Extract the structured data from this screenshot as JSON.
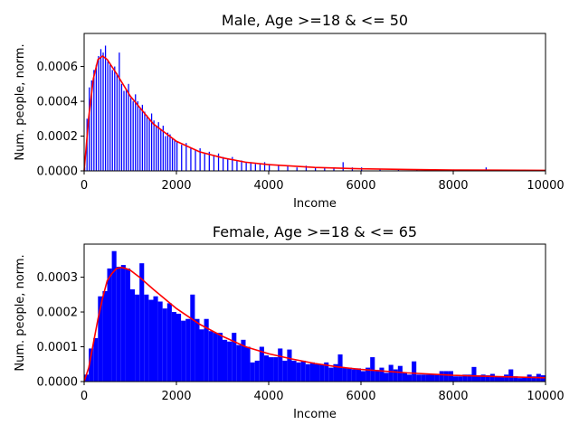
{
  "chart_data": [
    {
      "type": "bar",
      "title": "Male, Age >=18 & <= 50",
      "xlabel": "Income",
      "ylabel": "Num. people, norm.",
      "xlim": [
        0,
        10000
      ],
      "ylim": [
        0,
        0.00079
      ],
      "xticks": [
        0,
        2000,
        4000,
        6000,
        8000,
        10000
      ],
      "xtick_labels": [
        "0",
        "2000",
        "4000",
        "6000",
        "8000",
        "10000"
      ],
      "yticks": [
        0,
        0.0002,
        0.0004,
        0.0006
      ],
      "ytick_labels": [
        "0.0000",
        "0.0002",
        "0.0004",
        "0.0006"
      ],
      "grid": false,
      "histogram": {
        "color": "#0000ff",
        "bin_width": 25,
        "bins": [
          {
            "x": 0,
            "v": 2e-05
          },
          {
            "x": 50,
            "v": 0.0003
          },
          {
            "x": 100,
            "v": 0.00048
          },
          {
            "x": 150,
            "v": 0.00052
          },
          {
            "x": 200,
            "v": 0.00058
          },
          {
            "x": 250,
            "v": 0.00061
          },
          {
            "x": 300,
            "v": 0.00066
          },
          {
            "x": 350,
            "v": 0.0007
          },
          {
            "x": 400,
            "v": 0.00068
          },
          {
            "x": 450,
            "v": 0.00072
          },
          {
            "x": 500,
            "v": 0.00063
          },
          {
            "x": 550,
            "v": 0.00061
          },
          {
            "x": 600,
            "v": 0.00058
          },
          {
            "x": 650,
            "v": 0.0006
          },
          {
            "x": 700,
            "v": 0.00056
          },
          {
            "x": 750,
            "v": 0.00068
          },
          {
            "x": 800,
            "v": 0.0005
          },
          {
            "x": 850,
            "v": 0.00046
          },
          {
            "x": 900,
            "v": 0.00047
          },
          {
            "x": 950,
            "v": 0.0005
          },
          {
            "x": 1000,
            "v": 0.00042
          },
          {
            "x": 1050,
            "v": 0.0004
          },
          {
            "x": 1100,
            "v": 0.00044
          },
          {
            "x": 1150,
            "v": 0.0004
          },
          {
            "x": 1200,
            "v": 0.00036
          },
          {
            "x": 1250,
            "v": 0.00038
          },
          {
            "x": 1300,
            "v": 0.00034
          },
          {
            "x": 1350,
            "v": 0.00032
          },
          {
            "x": 1400,
            "v": 0.0003
          },
          {
            "x": 1450,
            "v": 0.00033
          },
          {
            "x": 1500,
            "v": 0.00029
          },
          {
            "x": 1550,
            "v": 0.00026
          },
          {
            "x": 1600,
            "v": 0.00028
          },
          {
            "x": 1650,
            "v": 0.00024
          },
          {
            "x": 1700,
            "v": 0.00026
          },
          {
            "x": 1750,
            "v": 0.0002
          },
          {
            "x": 1800,
            "v": 0.00022
          },
          {
            "x": 1850,
            "v": 0.00021
          },
          {
            "x": 1900,
            "v": 0.00019
          },
          {
            "x": 1950,
            "v": 0.00018
          },
          {
            "x": 2000,
            "v": 0.00017
          },
          {
            "x": 2100,
            "v": 0.00015
          },
          {
            "x": 2200,
            "v": 0.00016
          },
          {
            "x": 2300,
            "v": 0.00013
          },
          {
            "x": 2400,
            "v": 0.00012
          },
          {
            "x": 2500,
            "v": 0.00013
          },
          {
            "x": 2600,
            "v": 0.0001
          },
          {
            "x": 2700,
            "v": 0.00011
          },
          {
            "x": 2800,
            "v": 9e-05
          },
          {
            "x": 2900,
            "v": 0.0001
          },
          {
            "x": 3000,
            "v": 8e-05
          },
          {
            "x": 3100,
            "v": 7e-05
          },
          {
            "x": 3200,
            "v": 8e-05
          },
          {
            "x": 3300,
            "v": 6e-05
          },
          {
            "x": 3400,
            "v": 6e-05
          },
          {
            "x": 3500,
            "v": 5e-05
          },
          {
            "x": 3600,
            "v": 5e-05
          },
          {
            "x": 3700,
            "v": 4e-05
          },
          {
            "x": 3800,
            "v": 4e-05
          },
          {
            "x": 3900,
            "v": 5e-05
          },
          {
            "x": 4000,
            "v": 4e-05
          },
          {
            "x": 4200,
            "v": 3e-05
          },
          {
            "x": 4400,
            "v": 3e-05
          },
          {
            "x": 4600,
            "v": 2e-05
          },
          {
            "x": 4800,
            "v": 3e-05
          },
          {
            "x": 5000,
            "v": 2e-05
          },
          {
            "x": 5200,
            "v": 2e-05
          },
          {
            "x": 5400,
            "v": 2e-05
          },
          {
            "x": 5600,
            "v": 5e-05
          },
          {
            "x": 5800,
            "v": 2e-05
          },
          {
            "x": 6000,
            "v": 2e-05
          },
          {
            "x": 6400,
            "v": 1e-05
          },
          {
            "x": 6800,
            "v": 1e-05
          },
          {
            "x": 7200,
            "v": 1e-05
          },
          {
            "x": 7600,
            "v": 8e-06
          },
          {
            "x": 8000,
            "v": 8e-06
          },
          {
            "x": 8400,
            "v": 6e-06
          },
          {
            "x": 8700,
            "v": 2e-05
          },
          {
            "x": 9000,
            "v": 6e-06
          },
          {
            "x": 9500,
            "v": 5e-06
          }
        ]
      },
      "fit_curve": {
        "color": "#ff0000",
        "points": [
          [
            0,
            0
          ],
          [
            100,
            0.00031
          ],
          [
            200,
            0.00053
          ],
          [
            300,
            0.00064
          ],
          [
            400,
            0.00066
          ],
          [
            500,
            0.00064
          ],
          [
            700,
            0.00056
          ],
          [
            1000,
            0.00043
          ],
          [
            1500,
            0.00027
          ],
          [
            2000,
            0.00017
          ],
          [
            2500,
            0.00011
          ],
          [
            3000,
            7.5e-05
          ],
          [
            3500,
            5e-05
          ],
          [
            4000,
            3.6e-05
          ],
          [
            5000,
            2e-05
          ],
          [
            6000,
            1.2e-05
          ],
          [
            7000,
            8e-06
          ],
          [
            8000,
            5e-06
          ],
          [
            9000,
            4e-06
          ],
          [
            10000,
            3e-06
          ]
        ]
      }
    },
    {
      "type": "bar",
      "title": "Female, Age >=18 & <= 65",
      "xlabel": "Income",
      "ylabel": "Num. people, norm.",
      "xlim": [
        0,
        10000
      ],
      "ylim": [
        0,
        0.000395
      ],
      "xticks": [
        0,
        2000,
        4000,
        6000,
        8000,
        10000
      ],
      "xtick_labels": [
        "0",
        "2000",
        "4000",
        "6000",
        "8000",
        "10000"
      ],
      "yticks": [
        0,
        0.0001,
        0.0002,
        0.0003
      ],
      "ytick_labels": [
        "0.0000",
        "0.0001",
        "0.0002",
        "0.0003"
      ],
      "grid": false,
      "histogram": {
        "color": "#0000ff",
        "bin_width": 100,
        "bins": [
          {
            "x": 0,
            "v": 2e-05
          },
          {
            "x": 100,
            "v": 9.5e-05
          },
          {
            "x": 200,
            "v": 0.000125
          },
          {
            "x": 300,
            "v": 0.000245
          },
          {
            "x": 400,
            "v": 0.00026
          },
          {
            "x": 500,
            "v": 0.000325
          },
          {
            "x": 600,
            "v": 0.000375
          },
          {
            "x": 700,
            "v": 0.00033
          },
          {
            "x": 800,
            "v": 0.000335
          },
          {
            "x": 900,
            "v": 0.000325
          },
          {
            "x": 1000,
            "v": 0.000265
          },
          {
            "x": 1100,
            "v": 0.00025
          },
          {
            "x": 1200,
            "v": 0.00034
          },
          {
            "x": 1300,
            "v": 0.00025
          },
          {
            "x": 1400,
            "v": 0.000235
          },
          {
            "x": 1500,
            "v": 0.000245
          },
          {
            "x": 1600,
            "v": 0.00023
          },
          {
            "x": 1700,
            "v": 0.00021
          },
          {
            "x": 1800,
            "v": 0.000225
          },
          {
            "x": 1900,
            "v": 0.0002
          },
          {
            "x": 2000,
            "v": 0.000195
          },
          {
            "x": 2100,
            "v": 0.000175
          },
          {
            "x": 2200,
            "v": 0.00018
          },
          {
            "x": 2300,
            "v": 0.00025
          },
          {
            "x": 2400,
            "v": 0.00018
          },
          {
            "x": 2500,
            "v": 0.00015
          },
          {
            "x": 2600,
            "v": 0.00018
          },
          {
            "x": 2700,
            "v": 0.000145
          },
          {
            "x": 2800,
            "v": 0.00014
          },
          {
            "x": 2900,
            "v": 0.00014
          },
          {
            "x": 3000,
            "v": 0.00012
          },
          {
            "x": 3100,
            "v": 0.000115
          },
          {
            "x": 3200,
            "v": 0.00014
          },
          {
            "x": 3300,
            "v": 0.000105
          },
          {
            "x": 3400,
            "v": 0.00012
          },
          {
            "x": 3500,
            "v": 0.0001
          },
          {
            "x": 3600,
            "v": 5.5e-05
          },
          {
            "x": 3700,
            "v": 6e-05
          },
          {
            "x": 3800,
            "v": 0.0001
          },
          {
            "x": 3900,
            "v": 7.5e-05
          },
          {
            "x": 4000,
            "v": 7e-05
          },
          {
            "x": 4100,
            "v": 7e-05
          },
          {
            "x": 4200,
            "v": 9.5e-05
          },
          {
            "x": 4300,
            "v": 6e-05
          },
          {
            "x": 4400,
            "v": 9.2e-05
          },
          {
            "x": 4500,
            "v": 6e-05
          },
          {
            "x": 4600,
            "v": 5.5e-05
          },
          {
            "x": 4700,
            "v": 6e-05
          },
          {
            "x": 4800,
            "v": 5e-05
          },
          {
            "x": 4900,
            "v": 5.5e-05
          },
          {
            "x": 5000,
            "v": 5e-05
          },
          {
            "x": 5100,
            "v": 5e-05
          },
          {
            "x": 5200,
            "v": 5.5e-05
          },
          {
            "x": 5300,
            "v": 4e-05
          },
          {
            "x": 5400,
            "v": 5e-05
          },
          {
            "x": 5500,
            "v": 7.8e-05
          },
          {
            "x": 5600,
            "v": 4e-05
          },
          {
            "x": 5700,
            "v": 4e-05
          },
          {
            "x": 5800,
            "v": 3.5e-05
          },
          {
            "x": 5900,
            "v": 3.8e-05
          },
          {
            "x": 6000,
            "v": 3e-05
          },
          {
            "x": 6100,
            "v": 4e-05
          },
          {
            "x": 6200,
            "v": 7e-05
          },
          {
            "x": 6300,
            "v": 3.3e-05
          },
          {
            "x": 6400,
            "v": 4e-05
          },
          {
            "x": 6500,
            "v": 2.5e-05
          },
          {
            "x": 6600,
            "v": 4.8e-05
          },
          {
            "x": 6700,
            "v": 3.5e-05
          },
          {
            "x": 6800,
            "v": 4.5e-05
          },
          {
            "x": 6900,
            "v": 2.5e-05
          },
          {
            "x": 7000,
            "v": 2e-05
          },
          {
            "x": 7100,
            "v": 5.8e-05
          },
          {
            "x": 7200,
            "v": 2e-05
          },
          {
            "x": 7300,
            "v": 2e-05
          },
          {
            "x": 7400,
            "v": 2e-05
          },
          {
            "x": 7500,
            "v": 2e-05
          },
          {
            "x": 7600,
            "v": 2.2e-05
          },
          {
            "x": 7700,
            "v": 3e-05
          },
          {
            "x": 7800,
            "v": 3e-05
          },
          {
            "x": 7900,
            "v": 3e-05
          },
          {
            "x": 8000,
            "v": 1.5e-05
          },
          {
            "x": 8100,
            "v": 1.5e-05
          },
          {
            "x": 8200,
            "v": 2e-05
          },
          {
            "x": 8300,
            "v": 2e-05
          },
          {
            "x": 8400,
            "v": 4.2e-05
          },
          {
            "x": 8500,
            "v": 1.8e-05
          },
          {
            "x": 8600,
            "v": 2e-05
          },
          {
            "x": 8700,
            "v": 1.8e-05
          },
          {
            "x": 8800,
            "v": 2.2e-05
          },
          {
            "x": 8900,
            "v": 1.5e-05
          },
          {
            "x": 9000,
            "v": 1.5e-05
          },
          {
            "x": 9100,
            "v": 2e-05
          },
          {
            "x": 9200,
            "v": 3.5e-05
          },
          {
            "x": 9300,
            "v": 1.5e-05
          },
          {
            "x": 9400,
            "v": 1e-05
          },
          {
            "x": 9500,
            "v": 1.2e-05
          },
          {
            "x": 9600,
            "v": 2e-05
          },
          {
            "x": 9700,
            "v": 1.5e-05
          },
          {
            "x": 9800,
            "v": 2.2e-05
          },
          {
            "x": 9900,
            "v": 1.8e-05
          }
        ]
      },
      "fit_curve": {
        "color": "#ff0000",
        "points": [
          [
            0,
            0
          ],
          [
            100,
            4e-05
          ],
          [
            200,
            0.00011
          ],
          [
            300,
            0.00018
          ],
          [
            400,
            0.00024
          ],
          [
            500,
            0.00029
          ],
          [
            600,
            0.00031
          ],
          [
            700,
            0.000325
          ],
          [
            800,
            0.000328
          ],
          [
            900,
            0.000325
          ],
          [
            1000,
            0.00032
          ],
          [
            1200,
            0.0003
          ],
          [
            1500,
            0.000265
          ],
          [
            2000,
            0.00021
          ],
          [
            2500,
            0.000165
          ],
          [
            3000,
            0.00013
          ],
          [
            3500,
            0.0001
          ],
          [
            4000,
            8e-05
          ],
          [
            4500,
            6.5e-05
          ],
          [
            5000,
            5.2e-05
          ],
          [
            5500,
            4.2e-05
          ],
          [
            6000,
            3.5e-05
          ],
          [
            7000,
            2.5e-05
          ],
          [
            8000,
            1.8e-05
          ],
          [
            9000,
            1.4e-05
          ],
          [
            10000,
            1.1e-05
          ]
        ]
      }
    }
  ]
}
